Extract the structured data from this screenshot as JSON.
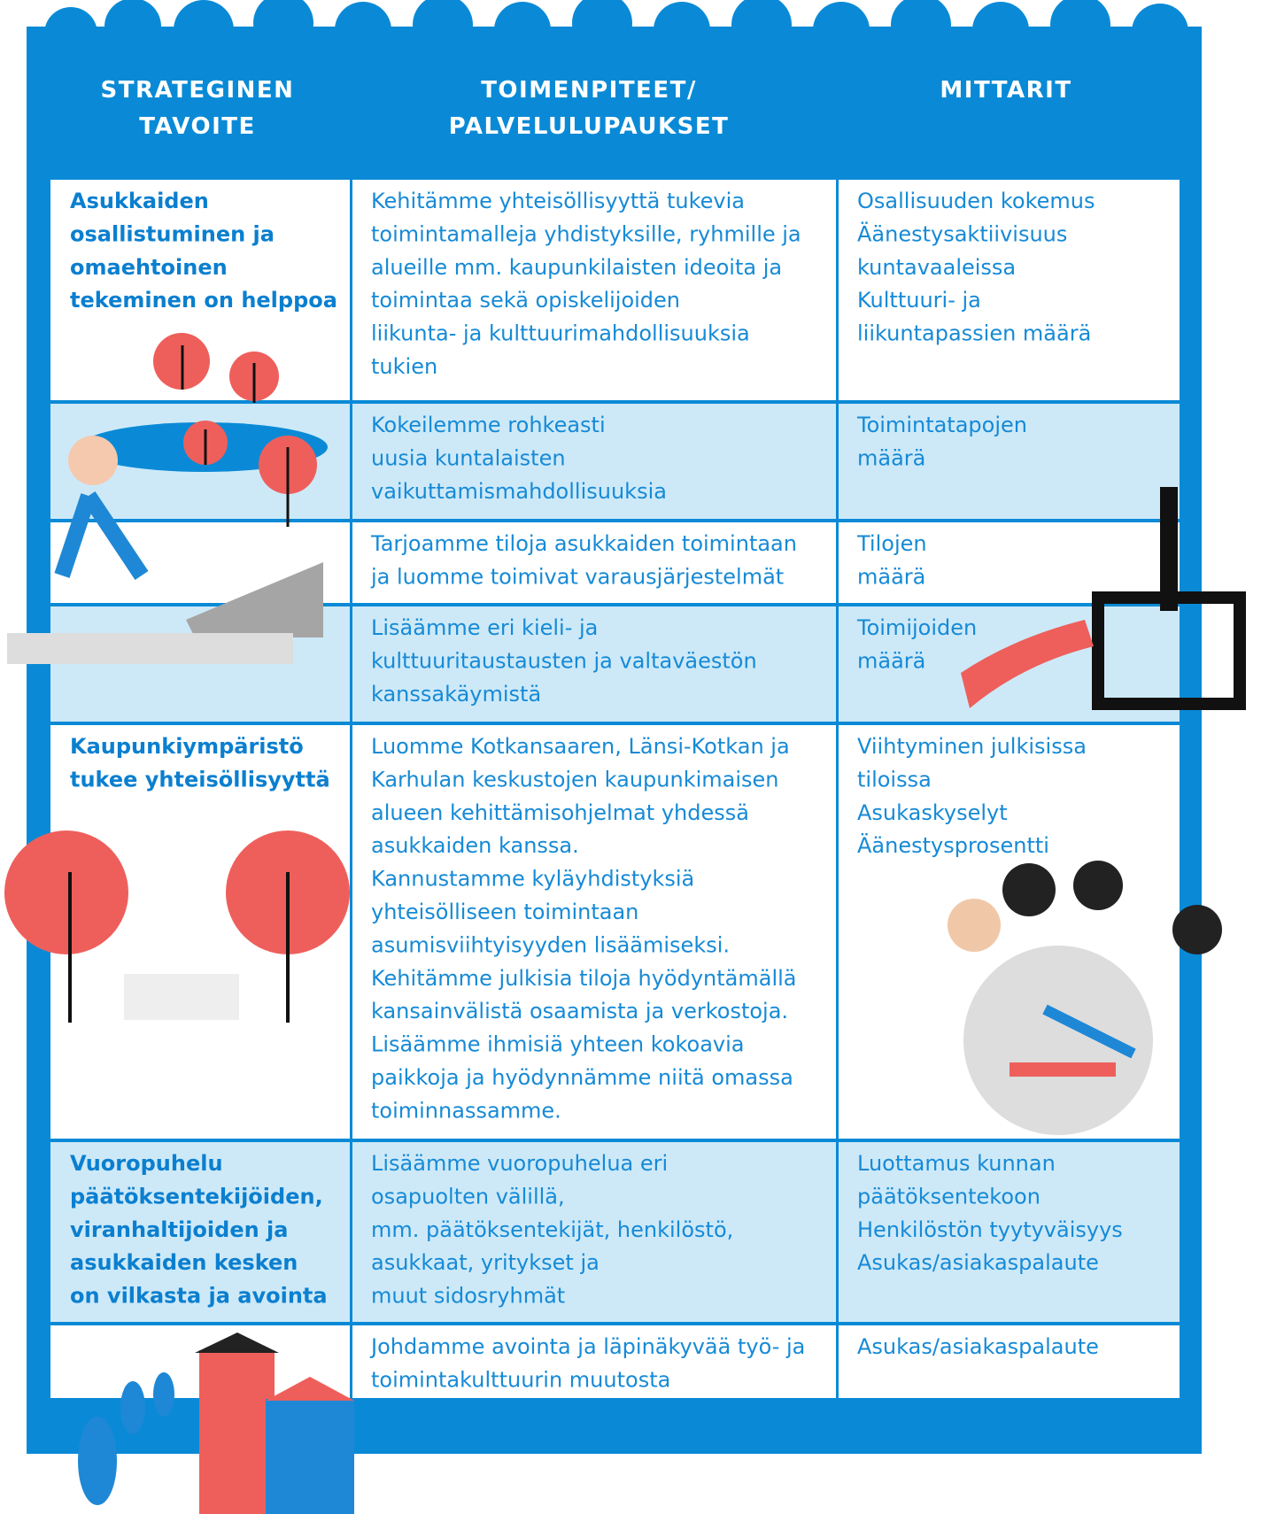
{
  "header": {
    "columns": [
      [
        "STRATEGINEN",
        "TAVOITE"
      ],
      [
        "TOIMENPITEET/",
        "PALVELULUPAUKSET"
      ],
      [
        "MITTARIT"
      ]
    ]
  },
  "table": {
    "rows": [
      [
        [
          "Asukkaiden",
          "osallistuminen ja",
          "omaehtoinen",
          "tekeminen on helppoa"
        ],
        [
          "Kehitämme yhteisöllisyyttä tukevia",
          "toimintamalleja yhdistyksille, ryhmille ja",
          "alueille mm. kaupunkilaisten ideoita ja",
          "toimintaa sekä opiskelijoiden",
          "liikunta- ja kulttuurimahdollisuuksia",
          "tukien"
        ],
        [
          "Osallisuuden kokemus",
          "Äänestysaktiivisuus",
          "kuntavaaleissa",
          "Kulttuuri- ja",
          "liikuntapassien määrä"
        ]
      ],
      [
        [],
        [
          "Kokeilemme rohkeasti",
          "uusia kuntalaisten",
          "vaikuttamismahdollisuuksia"
        ],
        [
          "Toimintatapojen",
          "määrä"
        ]
      ],
      [
        [],
        [
          "Tarjoamme tiloja asukkaiden toimintaan",
          "ja luomme toimivat varausjärjestelmät"
        ],
        [
          "Tilojen",
          "määrä"
        ]
      ],
      [
        [],
        [
          "Lisäämme eri kieli- ja",
          "kulttuuritaustausten ja valtaväestön",
          "kanssakäymistä"
        ],
        [
          "Toimijoiden",
          "määrä"
        ]
      ],
      [
        [
          "Kaupunkiympäristö",
          "tukee yhteisöllisyyttä"
        ],
        [
          "Luomme Kotkansaaren, Länsi-Kotkan ja",
          "Karhulan keskustojen kaupunkimaisen",
          "alueen kehittämisohjelmat yhdessä",
          "asukkaiden kanssa.",
          "Kannustamme kyläyhdistyksiä",
          "yhteisölliseen toimintaan",
          "asumisviihtyisyyden lisäämiseksi.",
          "Kehitämme julkisia tiloja hyödyntämällä",
          "kansainvälistä osaamista ja verkostoja.",
          "Lisäämme ihmisiä yhteen kokoavia",
          "paikkoja ja hyödynnämme niitä omassa",
          "toiminnassamme."
        ],
        [
          "Viihtyminen julkisissa",
          "tiloissa",
          "Asukaskyselyt",
          "Äänestysprosentti"
        ]
      ],
      [
        [
          "Vuoropuhelu",
          "päätöksentekijöiden,",
          "viranhaltijoiden ja",
          "asukkaiden kesken",
          "on vilkasta ja avointa"
        ],
        [
          "Lisäämme vuoropuhelua eri",
          "osapuolten välillä,",
          "mm. päätöksentekijät, henkilöstö,",
          "asukkaat, yritykset ja",
          "muut sidosryhmät"
        ],
        [
          "Luottamus kunnan",
          "päätöksentekoon",
          "Henkilöstön tyytyväisyys",
          "Asukas/asiakaspalaute"
        ]
      ],
      [
        [],
        [
          "Johdamme avointa ja läpinäkyvää työ- ja",
          "toimintakulttuurin muutosta"
        ],
        [
          "Asukas/asiakaspalaute"
        ]
      ]
    ]
  }
}
